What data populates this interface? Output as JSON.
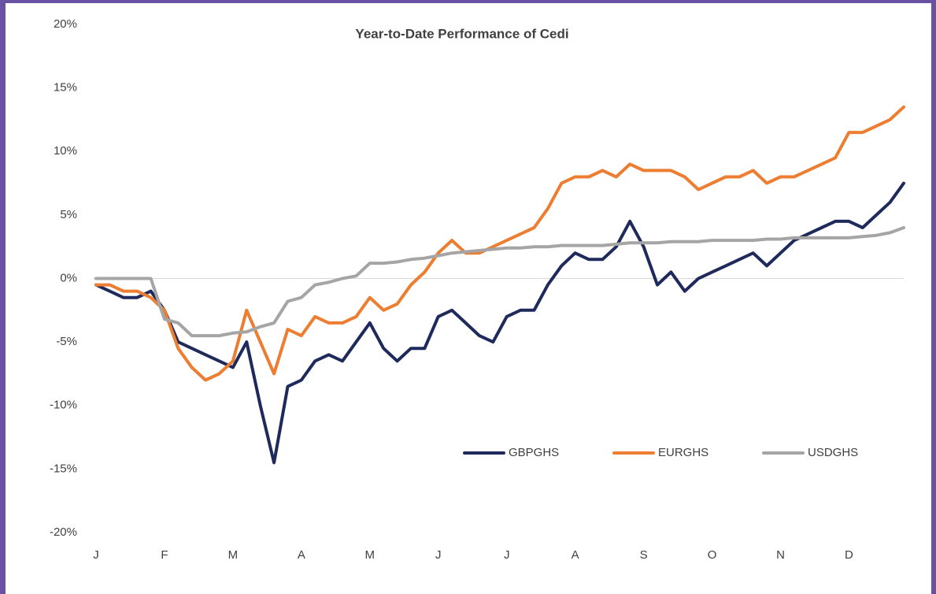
{
  "chart_data": {
    "type": "line",
    "title": "Year-to-Date Performance of Cedi",
    "x": [
      0,
      0.2,
      0.4,
      0.6,
      0.8,
      1,
      1.2,
      1.4,
      1.6,
      1.8,
      2,
      2.2,
      2.4,
      2.6,
      2.8,
      3,
      3.2,
      3.4,
      3.6,
      3.8,
      4,
      4.2,
      4.4,
      4.6,
      4.8,
      5,
      5.2,
      5.4,
      5.6,
      5.8,
      6,
      6.2,
      6.4,
      6.6,
      6.8,
      7,
      7.2,
      7.4,
      7.6,
      7.8,
      8,
      8.2,
      8.4,
      8.6,
      8.8,
      9,
      9.2,
      9.4,
      9.6,
      9.8,
      10,
      10.2,
      10.4,
      10.6,
      10.8,
      11,
      11.2,
      11.4,
      11.6,
      11.8
    ],
    "series": [
      {
        "name": "GBPGHS",
        "color": "#1f2a5c",
        "values": [
          -0.5,
          -1,
          -1.5,
          -1.5,
          -1,
          -2.5,
          -5,
          -5.5,
          -6,
          -6.5,
          -7,
          -5,
          -10,
          -14.5,
          -8.5,
          -8,
          -6.5,
          -6,
          -6.5,
          -5,
          -3.5,
          -5.5,
          -6.5,
          -5.5,
          -5.5,
          -3,
          -2.5,
          -3.5,
          -4.5,
          -5,
          -3,
          -2.5,
          -2.5,
          -0.5,
          1,
          2,
          1.5,
          1.5,
          2.5,
          4.5,
          2.5,
          -0.5,
          0.5,
          -1,
          0,
          0.5,
          1,
          1.5,
          2,
          1,
          2,
          3,
          3.5,
          4,
          4.5,
          4.5,
          4,
          5,
          6,
          7.5
        ]
      },
      {
        "name": "EURGHS",
        "color": "#ed7d31",
        "values": [
          -0.5,
          -0.5,
          -1,
          -1,
          -1.5,
          -2.5,
          -5.5,
          -7,
          -8,
          -7.5,
          -6.5,
          -2.5,
          -5,
          -7.5,
          -4,
          -4.5,
          -3,
          -3.5,
          -3.5,
          -3,
          -1.5,
          -2.5,
          -2,
          -0.5,
          0.5,
          2,
          3,
          2,
          2,
          2.5,
          3,
          3.5,
          4,
          5.5,
          7.5,
          8,
          8,
          8.5,
          8,
          9,
          8.5,
          8.5,
          8.5,
          8,
          7,
          7.5,
          8,
          8,
          8.5,
          7.5,
          8,
          8,
          8.5,
          9,
          9.5,
          11.5,
          11.5,
          12,
          12.5,
          13.5
        ]
      },
      {
        "name": "USDGHS",
        "color": "#a5a5a5",
        "values": [
          0,
          0,
          0,
          0,
          0,
          -3.2,
          -3.5,
          -4.5,
          -4.5,
          -4.5,
          -4.3,
          -4.2,
          -3.8,
          -3.5,
          -1.8,
          -1.5,
          -0.5,
          -0.3,
          0,
          0.2,
          1.2,
          1.2,
          1.3,
          1.5,
          1.6,
          1.8,
          2,
          2.1,
          2.2,
          2.3,
          2.4,
          2.4,
          2.5,
          2.5,
          2.6,
          2.6,
          2.6,
          2.6,
          2.7,
          2.8,
          2.8,
          2.8,
          2.9,
          2.9,
          2.9,
          3,
          3,
          3,
          3,
          3.1,
          3.1,
          3.2,
          3.2,
          3.2,
          3.2,
          3.2,
          3.3,
          3.4,
          3.6,
          4
        ]
      }
    ],
    "xlim": [
      0,
      11.8
    ],
    "xticks": [
      {
        "value": 0,
        "label": "J"
      },
      {
        "value": 1,
        "label": "F"
      },
      {
        "value": 2,
        "label": "M"
      },
      {
        "value": 3,
        "label": "A"
      },
      {
        "value": 4,
        "label": "M"
      },
      {
        "value": 5,
        "label": "J"
      },
      {
        "value": 6,
        "label": "J"
      },
      {
        "value": 7,
        "label": "A"
      },
      {
        "value": 8,
        "label": "S"
      },
      {
        "value": 9,
        "label": "O"
      },
      {
        "value": 10,
        "label": "N"
      },
      {
        "value": 11,
        "label": "D"
      }
    ],
    "ylim": [
      -20,
      20
    ],
    "yticks": [
      {
        "value": 20,
        "label": "20%"
      },
      {
        "value": 15,
        "label": "15%"
      },
      {
        "value": 10,
        "label": "10%"
      },
      {
        "value": 5,
        "label": "5%"
      },
      {
        "value": 0,
        "label": "0%"
      },
      {
        "value": -5,
        "label": "-5%"
      },
      {
        "value": -10,
        "label": "-10%"
      },
      {
        "value": -15,
        "label": "-15%"
      },
      {
        "value": -20,
        "label": "-20%"
      }
    ],
    "grid": false,
    "legend": "lower right"
  }
}
